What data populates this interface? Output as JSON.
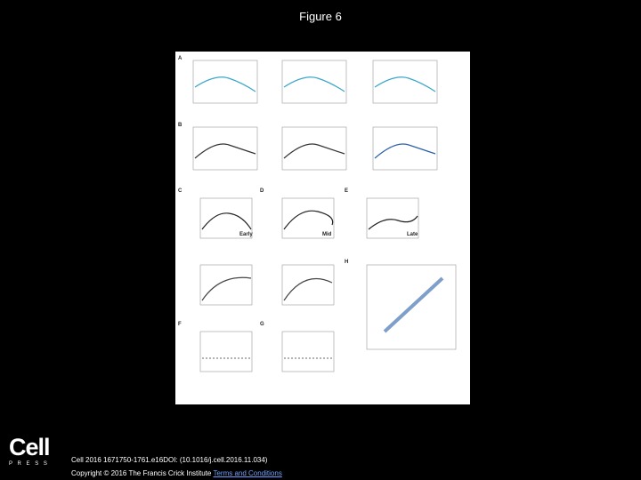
{
  "header": {
    "title": "Figure 6"
  },
  "figure": {
    "panels": [
      "A",
      "B",
      "C",
      "D",
      "E",
      "F",
      "G",
      "H"
    ],
    "stage_labels": [
      "Early",
      "Mid",
      "Late"
    ]
  },
  "logo": {
    "name": "Cell",
    "subtitle": "P R E S S"
  },
  "footer": {
    "citation": "Cell 2016 1671750-1761.e16DOI: (10.1016/j.cell.2016.11.034)",
    "copyright": "Copyright © 2016 The Francis Crick Institute",
    "link": "Terms and Conditions"
  }
}
